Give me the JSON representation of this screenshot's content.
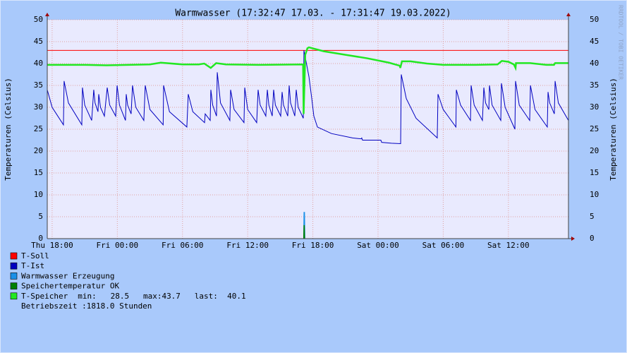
{
  "chart_data": {
    "type": "line",
    "title": "Warmwasser (17:32:47 17.03. - 17:31:47 19.03.2022)",
    "y_label": "Temperaturen (Celsius)",
    "watermark": "RRDTOOL / TOBI OETIKER",
    "xlim": [
      17.55,
      65.53
    ],
    "xticks": [
      {
        "value": 18,
        "label": "Thu 18:00"
      },
      {
        "value": 24,
        "label": "Fri 00:00"
      },
      {
        "value": 30,
        "label": "Fri 06:00"
      },
      {
        "value": 36,
        "label": "Fri 12:00"
      },
      {
        "value": 42,
        "label": "Fri 18:00"
      },
      {
        "value": 48,
        "label": "Sat 00:00"
      },
      {
        "value": 54,
        "label": "Sat 06:00"
      },
      {
        "value": 60,
        "label": "Sat 12:00"
      }
    ],
    "ylim": [
      0,
      50
    ],
    "yticks": [
      0,
      5,
      10,
      15,
      20,
      25,
      30,
      35,
      40,
      45,
      50
    ],
    "grid": true,
    "series": [
      {
        "name": "T-Soll",
        "color": "#ff0000",
        "style": "line",
        "x": [
          17.55,
          65.53
        ],
        "values": [
          43,
          43
        ]
      },
      {
        "name": "T-Ist",
        "color": "#0000c0",
        "style": "line",
        "x": [
          17.55,
          18.0,
          19.04,
          19.1,
          19.5,
          20.73,
          20.79,
          21.0,
          21.64,
          21.83,
          21.95,
          22.22,
          22.29,
          22.45,
          22.81,
          23.07,
          23.3,
          23.85,
          23.98,
          24.2,
          24.75,
          24.82,
          24.95,
          25.27,
          25.4,
          25.7,
          26.44,
          26.57,
          27.0,
          28.22,
          28.26,
          28.8,
          30.4,
          30.53,
          30.95,
          32.03,
          32.09,
          32.55,
          32.61,
          32.78,
          33.13,
          33.2,
          33.5,
          34.36,
          34.43,
          34.75,
          35.66,
          35.73,
          36.0,
          36.83,
          36.96,
          37.15,
          37.67,
          37.81,
          37.95,
          38.26,
          38.39,
          38.55,
          39.04,
          39.17,
          39.3,
          39.69,
          39.82,
          39.95,
          40.34,
          40.47,
          40.65,
          41.12,
          41.18,
          41.64,
          41.9,
          42.09,
          42.42,
          43.72,
          45.66,
          46.44,
          46.5,
          46.57,
          48.26,
          48.33,
          49.24,
          50.08,
          50.14,
          50.6,
          51.5,
          53.45,
          53.52,
          54.0,
          55.17,
          55.21,
          55.6,
          56.51,
          56.57,
          56.85,
          57.61,
          57.74,
          57.9,
          58.2,
          58.26,
          58.5,
          59.3,
          59.36,
          59.7,
          60.6,
          60.66,
          61.0,
          61.96,
          62.03,
          62.45,
          63.58,
          63.65,
          63.8,
          64.23,
          64.3,
          64.6,
          65.53
        ],
        "values": [
          34,
          30,
          26,
          36,
          31,
          26,
          34.5,
          30.5,
          27,
          34,
          31,
          29,
          33,
          30,
          28,
          34.5,
          30.5,
          28,
          35,
          30.5,
          27,
          33,
          30.5,
          28.5,
          35,
          30,
          27,
          35,
          29.5,
          26,
          35,
          29,
          25.5,
          33,
          29,
          26.5,
          28.5,
          27,
          34,
          30.5,
          28,
          38,
          31,
          27,
          34,
          29.5,
          26.5,
          34.5,
          29.5,
          26.5,
          34,
          30.5,
          28,
          34,
          30.5,
          28,
          34,
          30.5,
          28,
          33.5,
          30.5,
          28,
          35,
          31,
          28,
          34,
          30,
          27.5,
          43,
          37,
          32,
          28,
          25.5,
          24,
          23,
          22.8,
          23,
          22.5,
          22.5,
          22,
          21.8,
          21.7,
          37.5,
          32,
          27.5,
          23,
          33,
          29.5,
          25.5,
          34,
          30.5,
          27,
          35,
          30.5,
          27,
          34.5,
          31,
          29.5,
          35,
          30.5,
          27,
          35.5,
          30,
          25,
          36,
          30.5,
          27,
          35,
          29.5,
          25.5,
          33.5,
          31,
          28.5,
          36,
          31,
          27
        ]
      },
      {
        "name": "Warmwasser Erzeugung",
        "color": "#1a90e8",
        "style": "area",
        "x": [
          41.15,
          41.18,
          41.24,
          41.27
        ],
        "values": [
          0,
          6,
          6,
          0
        ]
      },
      {
        "name": "Speichertemperatur OK",
        "color": "#008000",
        "style": "area",
        "x": [
          41.15,
          41.18,
          41.22,
          41.25
        ],
        "values": [
          0,
          3,
          3,
          0
        ]
      },
      {
        "name": "T-Speicher",
        "summary": "min:   28.5   max:43.7   last:  40.1",
        "color": "#22e822",
        "style": "line",
        "x": [
          17.55,
          21,
          23,
          27,
          28,
          30,
          31.5,
          32,
          32.6,
          33.1,
          34,
          37,
          41.1,
          41.15,
          41.3,
          41.5,
          41.64,
          43,
          45,
          47,
          49,
          50.0,
          50.05,
          50.2,
          51,
          52.5,
          54,
          57,
          59,
          59.4,
          60,
          60.5,
          60.66,
          60.7,
          62,
          63.5,
          64.2,
          64.3,
          65.53
        ],
        "values": [
          39.7,
          39.7,
          39.6,
          39.8,
          40.2,
          39.8,
          39.8,
          40.0,
          39.0,
          40.1,
          39.8,
          39.7,
          39.8,
          28.5,
          42,
          43.5,
          43.7,
          42.8,
          42,
          41.2,
          40.2,
          39.5,
          39.0,
          40.5,
          40.5,
          40,
          39.7,
          39.7,
          39.8,
          40.6,
          40.4,
          39.8,
          39.0,
          40.1,
          40.1,
          39.7,
          39.7,
          40.1,
          40.1
        ]
      }
    ],
    "comment": "Betriebszeit  :1818.0 Stunden"
  }
}
